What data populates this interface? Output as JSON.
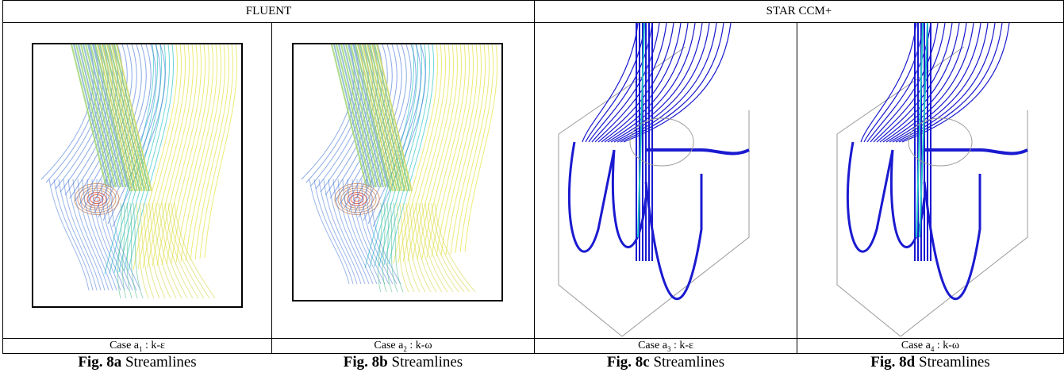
{
  "headers": {
    "left": "FLUENT",
    "right": "STAR CCM+"
  },
  "panels": [
    {
      "case_prefix": "Case a",
      "case_sub": "1",
      "case_suffix": " : k-ε",
      "fig_bold": "Fig. 8a",
      "fig_rest": " Streamlines"
    },
    {
      "case_prefix": "Case a",
      "case_sub": "2",
      "case_suffix": " : k-ω",
      "fig_bold": "Fig. 8b",
      "fig_rest": " Streamlines"
    },
    {
      "case_prefix": "Case a",
      "case_sub": "3",
      "case_suffix": " : k-ε",
      "fig_bold": "Fig. 8c",
      "fig_rest": " Streamlines"
    },
    {
      "case_prefix": "Case a",
      "case_sub": "4",
      "case_suffix": " : k-ω",
      "fig_bold": "Fig. 8d",
      "fig_rest": " Streamlines"
    }
  ],
  "colors": {
    "fluent_blue": "#3a6fd8",
    "fluent_cyan": "#2ec4c8",
    "fluent_yellow": "#e6e23a",
    "fluent_red": "#e4401a",
    "star_blue": "#1a1ad0",
    "star_cyan": "#22c4c8"
  }
}
